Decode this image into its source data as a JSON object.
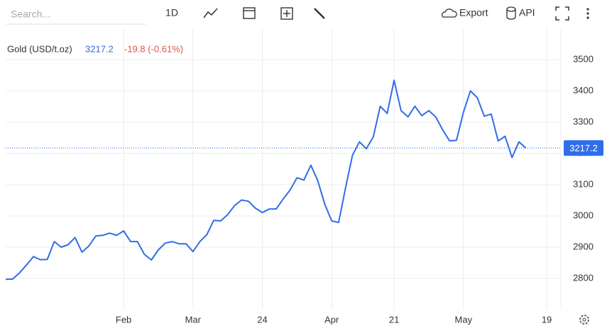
{
  "toolbar": {
    "search": "Search...",
    "interval": "1D",
    "export": "Export",
    "api": "API"
  },
  "chart_data": {
    "type": "line",
    "title": "Gold (USD/t.oz)",
    "last_value": 3217.2,
    "change": "-19.8 (-0.61%)",
    "categories": [
      null,
      null,
      null,
      null,
      null,
      null,
      null,
      null,
      null,
      null,
      null,
      null,
      null,
      null,
      null,
      null,
      null,
      "Feb",
      null,
      null,
      null,
      null,
      null,
      null,
      null,
      null,
      null,
      "Mar",
      null,
      null,
      null,
      null,
      null,
      null,
      null,
      null,
      null,
      "24",
      null,
      null,
      null,
      null,
      null,
      null,
      null,
      null,
      null,
      "Apr",
      null,
      null,
      null,
      null,
      null,
      null,
      null,
      null,
      "21",
      null,
      null,
      null,
      null,
      null,
      null,
      null,
      null,
      null,
      "May",
      null,
      null,
      null,
      null,
      null,
      null,
      null,
      null,
      null,
      null,
      null,
      "19",
      null,
      null
    ],
    "series": [
      {
        "name": "Gold",
        "color": "#2f6ee8",
        "values": [
          2797,
          2798,
          2818,
          2843,
          2870,
          2860,
          2861,
          2918,
          2900,
          2908,
          2931,
          2884,
          2904,
          2936,
          2938,
          2945,
          2938,
          2952,
          2918,
          2918,
          2877,
          2859,
          2891,
          2913,
          2918,
          2911,
          2911,
          2886,
          2918,
          2940,
          2986,
          2984,
          3004,
          3033,
          3051,
          3047,
          3025,
          3011,
          3022,
          3022,
          3054,
          3083,
          3122,
          3115,
          3162,
          3113,
          3038,
          2984,
          2979,
          3090,
          3194,
          3237,
          3215,
          3253,
          3351,
          3328,
          3434,
          3337,
          3317,
          3351,
          3321,
          3337,
          3317,
          3276,
          3240,
          3242,
          3332,
          3400,
          3378,
          3319,
          3326,
          3240,
          3255,
          3187,
          3237,
          3217,
          null,
          null,
          null,
          null,
          null
        ]
      }
    ],
    "ylim": [
      2700,
      3600
    ],
    "yticks": [
      2800,
      2900,
      3000,
      3100,
      3200,
      3300,
      3400,
      3500
    ],
    "grid": true
  }
}
